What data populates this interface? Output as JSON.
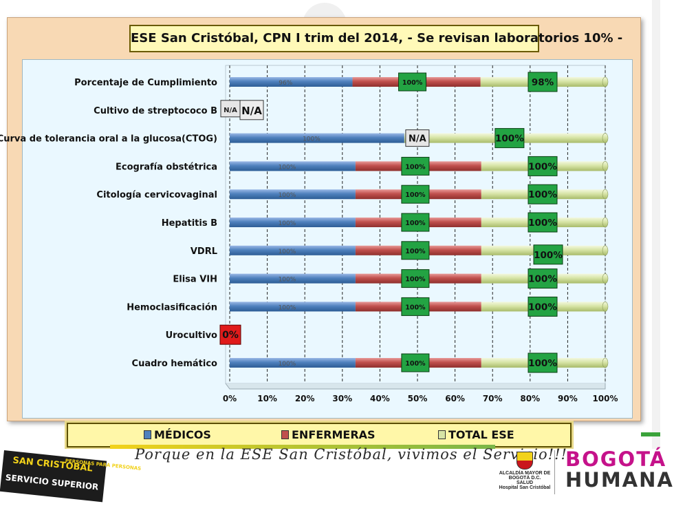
{
  "title": "ESE San Cristóbal, CPN I trim  del 2014,  - Se revisan laboratorios 10% -",
  "colors": {
    "medicos": "#4f81bd",
    "enfermeras": "#c0504d",
    "total": "#d7e4a6",
    "green_label": "#23a343",
    "red_label": "#e01b1b",
    "na_label": "#e9e9e9"
  },
  "chart_data": {
    "type": "bar",
    "orientation": "horizontal-stacked",
    "xlim": [
      0,
      100
    ],
    "x_ticks": [
      "0%",
      "10%",
      "20%",
      "30%",
      "40%",
      "50%",
      "60%",
      "70%",
      "80%",
      "90%",
      "100%"
    ],
    "legend_position": "bottom",
    "categories": [
      "Porcentaje de Cumplimiento",
      "Cultivo de streptococo B",
      "Curva de tolerancia oral a la glucosa(CTOG)",
      "Ecografía obstétrica",
      "Citología cervicovaginal",
      "Hepatitis B",
      "VDRL",
      "Elisa VIH",
      "Hemoclasificación",
      "Urocultivo",
      "Cuadro hemático"
    ],
    "series": [
      {
        "name": "MÉDICOS",
        "segment_widths": [
          32.7,
          0,
          46.5,
          33.5,
          33.5,
          33.5,
          33.5,
          33.5,
          33.5,
          0,
          33.5
        ],
        "labels": [
          "96%",
          "N/A",
          "100%",
          "100%",
          "100%",
          "100%",
          "100%",
          "100%",
          "100%",
          "",
          "100%"
        ]
      },
      {
        "name": "ENFERMERAS",
        "segment_widths": [
          34.1,
          0,
          0,
          33.5,
          33.5,
          33.5,
          33.5,
          33.5,
          33.5,
          0,
          33.5
        ],
        "labels": [
          "100%",
          "",
          "N/A",
          "100%",
          "100%",
          "100%",
          "100%",
          "100%",
          "100%",
          "",
          "100%"
        ]
      },
      {
        "name": "TOTAL ESE",
        "segment_widths": [
          33.2,
          0,
          53.5,
          33.0,
          33.0,
          33.0,
          33.0,
          33.0,
          33.0,
          0,
          33.0
        ],
        "labels": [
          "98%",
          "N/A",
          "100%",
          "100%",
          "100%",
          "100%",
          "100%",
          "100%",
          "100%",
          "0%",
          "100%"
        ]
      }
    ]
  },
  "legend": {
    "medicos": "MÉDICOS",
    "enfermeras": "ENFERMERAS",
    "total": "TOTAL ESE"
  },
  "footer": {
    "logo_line1": "SAN CRISTÓBAL",
    "logo_line2": "SERVICIO SUPERIOR",
    "logo_badge": "PERSONAS PARA PERSONAS",
    "slogan": "Porque en la ESE San Cristóbal, vivimos el Servicio!!!",
    "alcaldia": "ALCALDÍA MAYOR DE BOGOTÁ D.C.",
    "salud": "SALUD",
    "hospital": "Hospital San Cristóbal",
    "bogota_line1": "BOGOTÁ",
    "bogota_line2": "HUMANA"
  }
}
